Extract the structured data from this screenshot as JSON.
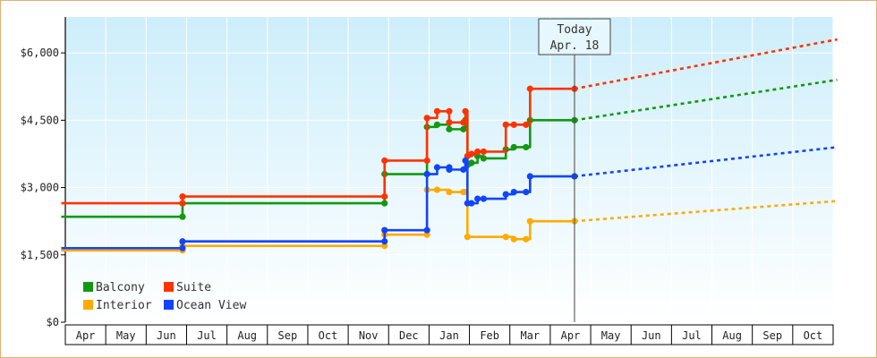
{
  "chart_data": {
    "type": "line",
    "y_ticks": [
      "$0",
      "$1,500",
      "$3,000",
      "$4,500",
      "$6,000"
    ],
    "y_tick_values": [
      0,
      1500,
      3000,
      4500,
      6000
    ],
    "ylim": [
      0,
      6800
    ],
    "x_months": [
      "Apr",
      "May",
      "Jun",
      "Jul",
      "Aug",
      "Sep",
      "Oct",
      "Nov",
      "Dec",
      "Jan",
      "Feb",
      "Mar",
      "Apr",
      "May",
      "Jun",
      "Jul",
      "Aug",
      "Sep",
      "Oct"
    ],
    "x_range": [
      0,
      19
    ],
    "today": {
      "label_line1": "Today",
      "label_line2": "Apr. 18",
      "x": 12.6
    },
    "grid": true,
    "legend_position": "bottom-left",
    "colors": {
      "background_top": "#cdeefb",
      "background_bottom": "#ffffff",
      "frame_border": "#e0b070"
    },
    "series": [
      {
        "name": "Balcony",
        "color": "#119911",
        "points": [
          [
            -0.1,
            2350
          ],
          [
            2.9,
            2350
          ],
          [
            2.9,
            2650
          ],
          [
            7.9,
            2650
          ],
          [
            7.9,
            3300
          ],
          [
            8.95,
            3300
          ],
          [
            8.95,
            4350
          ],
          [
            9.2,
            4400
          ],
          [
            9.5,
            4300
          ],
          [
            9.85,
            4300
          ],
          [
            9.9,
            4500
          ],
          [
            9.95,
            3500
          ],
          [
            10.05,
            3550
          ],
          [
            10.2,
            3700
          ],
          [
            10.35,
            3650
          ],
          [
            10.9,
            3850
          ],
          [
            11.1,
            3900
          ],
          [
            11.4,
            3900
          ],
          [
            11.5,
            4500
          ],
          [
            12.6,
            4500
          ]
        ],
        "forecast": [
          [
            12.6,
            4500
          ],
          [
            19.1,
            5400
          ]
        ]
      },
      {
        "name": "Suite",
        "color": "#ff3300",
        "points": [
          [
            -0.1,
            2650
          ],
          [
            2.9,
            2650
          ],
          [
            2.9,
            2800
          ],
          [
            7.9,
            2800
          ],
          [
            7.9,
            3600
          ],
          [
            8.95,
            3600
          ],
          [
            8.95,
            4550
          ],
          [
            9.2,
            4700
          ],
          [
            9.5,
            4700
          ],
          [
            9.5,
            4450
          ],
          [
            9.85,
            4450
          ],
          [
            9.9,
            4700
          ],
          [
            9.95,
            3700
          ],
          [
            10.05,
            3750
          ],
          [
            10.2,
            3800
          ],
          [
            10.35,
            3800
          ],
          [
            10.9,
            4400
          ],
          [
            11.1,
            4400
          ],
          [
            11.4,
            4400
          ],
          [
            11.5,
            5200
          ],
          [
            12.6,
            5200
          ]
        ],
        "forecast": [
          [
            12.6,
            5200
          ],
          [
            19.1,
            6300
          ]
        ]
      },
      {
        "name": "Interior",
        "color": "#ffaa00",
        "points": [
          [
            -0.1,
            1600
          ],
          [
            2.9,
            1600
          ],
          [
            2.9,
            1700
          ],
          [
            7.9,
            1700
          ],
          [
            7.9,
            1950
          ],
          [
            8.95,
            1950
          ],
          [
            8.95,
            2950
          ],
          [
            9.2,
            2950
          ],
          [
            9.5,
            2900
          ],
          [
            9.85,
            2900
          ],
          [
            9.9,
            2900
          ],
          [
            9.95,
            1900
          ],
          [
            10.9,
            1900
          ],
          [
            11.1,
            1850
          ],
          [
            11.4,
            1850
          ],
          [
            11.5,
            2250
          ],
          [
            12.6,
            2250
          ]
        ],
        "forecast": [
          [
            12.6,
            2250
          ],
          [
            19.1,
            2700
          ]
        ]
      },
      {
        "name": "Ocean View",
        "color": "#1144ff",
        "points": [
          [
            -0.1,
            1650
          ],
          [
            2.9,
            1650
          ],
          [
            2.9,
            1800
          ],
          [
            7.9,
            1800
          ],
          [
            7.9,
            2050
          ],
          [
            8.95,
            2050
          ],
          [
            8.95,
            3300
          ],
          [
            9.2,
            3450
          ],
          [
            9.5,
            3450
          ],
          [
            9.5,
            3400
          ],
          [
            9.85,
            3400
          ],
          [
            9.9,
            3600
          ],
          [
            9.95,
            2650
          ],
          [
            10.05,
            2650
          ],
          [
            10.2,
            2750
          ],
          [
            10.35,
            2750
          ],
          [
            10.9,
            2850
          ],
          [
            11.1,
            2900
          ],
          [
            11.4,
            2900
          ],
          [
            11.5,
            3250
          ],
          [
            12.6,
            3250
          ]
        ],
        "forecast": [
          [
            12.6,
            3250
          ],
          [
            19.1,
            3900
          ]
        ]
      }
    ]
  }
}
